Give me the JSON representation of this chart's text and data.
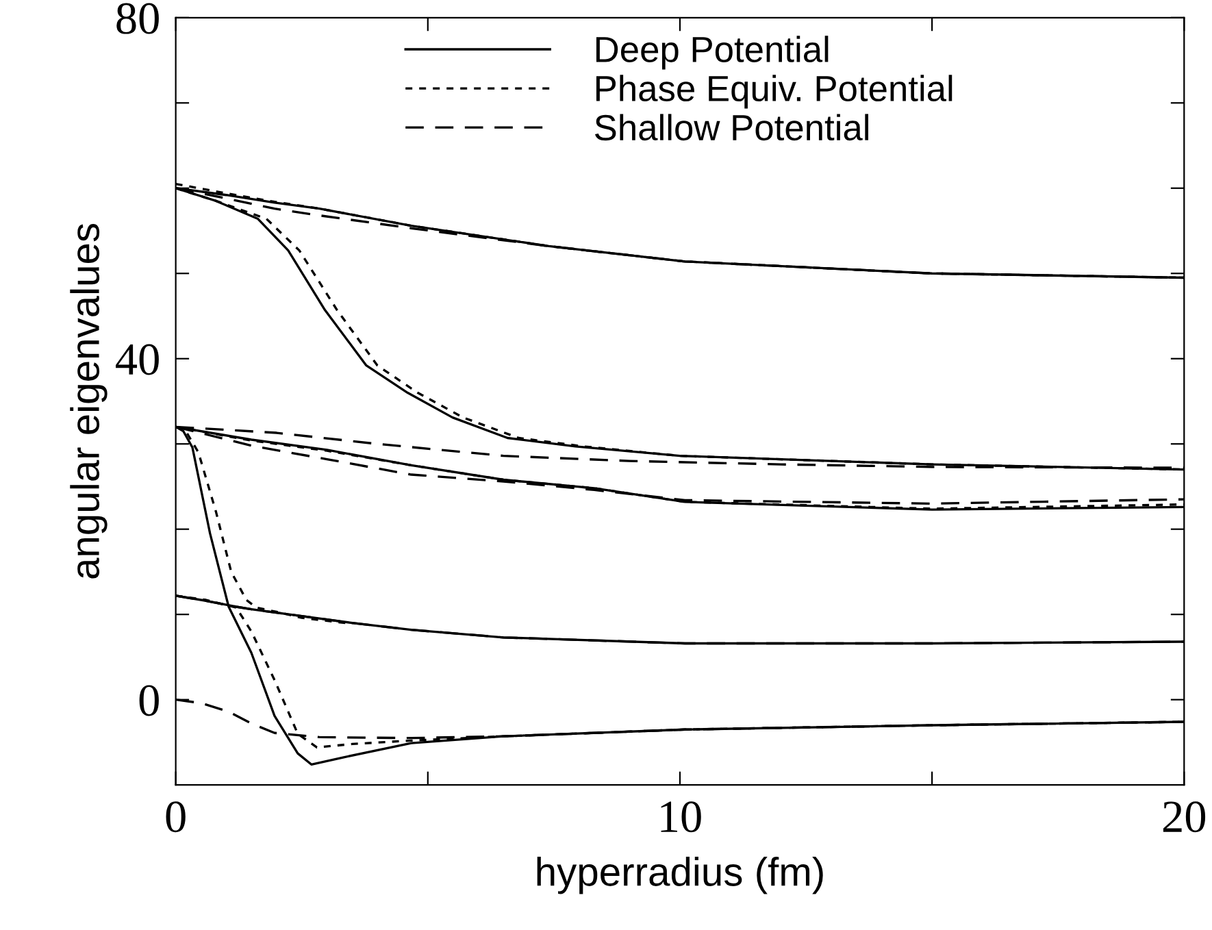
{
  "chart_data": {
    "type": "line",
    "xlabel": "hyperradius (fm)",
    "ylabel": "angular eigenvalues",
    "xlim": [
      0,
      20
    ],
    "ylim": [
      -10,
      80
    ],
    "xticks": [
      0,
      {
        "value": 5,
        "label": null
      },
      10,
      {
        "value": 15,
        "label": null
      },
      20
    ],
    "yticks": [
      0,
      {
        "value": 10,
        "label": null
      },
      {
        "value": 20,
        "label": null
      },
      {
        "value": 30,
        "label": null
      },
      40,
      {
        "value": 50,
        "label": null
      },
      {
        "value": 60,
        "label": null
      },
      {
        "value": 70,
        "label": null
      },
      80
    ],
    "grid": false,
    "legend": "top",
    "marker": "none",
    "series": [
      {
        "name": "Deep Potential",
        "color": "#000000",
        "line_style": "solid",
        "x": [
          0,
          1.0,
          1.96,
          2.85,
          4.67,
          7.4,
          10.1,
          15,
          20
        ],
        "values": [
          60,
          59.2,
          58.3,
          57.6,
          55.6,
          53.2,
          51.4,
          50.0,
          49.5
        ]
      },
      {
        "name": "Phase Equiv. Potential",
        "color": "#000000",
        "line_style": "dotted",
        "x": [
          0,
          1.0,
          1.96,
          2.85,
          4.67,
          7.4,
          10.1,
          15,
          20
        ],
        "values": [
          60.5,
          59.4,
          58.4,
          57.6,
          55.6,
          53.2,
          51.4,
          50.0,
          49.5
        ]
      },
      {
        "name": "Shallow Potential",
        "color": "#000000",
        "line_style": "dashed",
        "x": [
          0,
          1.0,
          1.96,
          2.85,
          4.67,
          7.4,
          10.1,
          15,
          20
        ],
        "values": [
          60,
          58.8,
          57.6,
          56.8,
          55.3,
          53.2,
          51.4,
          50.0,
          49.5
        ]
      },
      {
        "color": "#000000",
        "line_style": "solid",
        "x": [
          0,
          0.8,
          1.63,
          2.23,
          2.96,
          3.78,
          4.6,
          5.49,
          6.58,
          7.93,
          10,
          15,
          20
        ],
        "values": [
          60,
          58.5,
          56.4,
          52.7,
          45.7,
          39.2,
          36.0,
          33.1,
          30.7,
          29.7,
          28.6,
          27.6,
          27.0
        ]
      },
      {
        "color": "#000000",
        "line_style": "dotted",
        "x": [
          0,
          0.8,
          1.8,
          2.45,
          3.2,
          4.0,
          4.8,
          5.7,
          6.8,
          8.1,
          10,
          15,
          20
        ],
        "values": [
          60,
          58.5,
          56.4,
          52.7,
          45.7,
          39.2,
          36.0,
          33.1,
          30.7,
          29.7,
          28.6,
          27.6,
          27.0
        ]
      },
      {
        "color": "#000000",
        "line_style": "dashed",
        "x": [
          0,
          2,
          4,
          6.5,
          9,
          12,
          15,
          20
        ],
        "values": [
          32,
          31.3,
          30.0,
          28.6,
          28.0,
          27.6,
          27.3,
          27.2
        ]
      },
      {
        "color": "#000000",
        "line_style": "solid",
        "x": [
          0,
          1.5,
          3,
          4.67,
          6.5,
          8.3,
          10.1,
          15,
          20
        ],
        "values": [
          32,
          30.5,
          29.3,
          27.5,
          25.8,
          24.8,
          23.2,
          22.3,
          22.6
        ]
      },
      {
        "color": "#000000",
        "line_style": "dotted",
        "x": [
          0,
          1.5,
          3,
          4.67,
          6.5,
          8.3,
          10.1,
          15,
          20
        ],
        "values": [
          32,
          30.4,
          29.2,
          27.5,
          25.8,
          24.8,
          23.2,
          22.4,
          22.9
        ]
      },
      {
        "color": "#000000",
        "line_style": "dashed",
        "x": [
          0,
          1.5,
          3,
          4.67,
          6.5,
          8.3,
          10.1,
          15,
          20
        ],
        "values": [
          32,
          29.8,
          28.2,
          26.4,
          25.6,
          24.6,
          23.4,
          23.0,
          23.5
        ]
      },
      {
        "color": "#000000",
        "line_style": "solid",
        "x": [
          0,
          0.15,
          0.33,
          0.68,
          1.05,
          1.5,
          1.96,
          2.42,
          2.69,
          3.3,
          4.67,
          6.5,
          10.1,
          15,
          20
        ],
        "values": [
          32,
          31.5,
          29.6,
          19.5,
          10.9,
          5.5,
          -1.9,
          -6.3,
          -7.6,
          -6.8,
          -5.1,
          -4.3,
          -3.5,
          -3.0,
          -2.6
        ]
      },
      {
        "color": "#000000",
        "line_style": "dotted",
        "x": [
          0,
          0.2,
          0.45,
          0.8,
          1.1,
          1.4,
          1.6,
          2.0,
          2.5,
          3.5
        ],
        "values": [
          32,
          31.5,
          29.0,
          22.0,
          15.0,
          11.7,
          10.8,
          10.3,
          9.6,
          8.9
        ]
      },
      {
        "color": "#000000",
        "line_style": "dotted",
        "x": [
          0,
          0.6,
          1.2,
          1.5,
          1.96,
          2.42,
          2.8,
          3.5,
          4.67,
          6.5,
          10.1,
          15,
          20
        ],
        "values": [
          12.2,
          11.7,
          10.8,
          8.0,
          2.3,
          -4.0,
          -5.6,
          -5.2,
          -4.8,
          -4.3,
          -3.5,
          -3.0,
          -2.6
        ]
      },
      {
        "color": "#000000",
        "line_style": "solid",
        "x": [
          0,
          0.6,
          1.2,
          1.5,
          2.5,
          3.5,
          4.67,
          6.5,
          10.1,
          15,
          20
        ],
        "values": [
          12.2,
          11.6,
          10.9,
          10.6,
          9.8,
          9.0,
          8.2,
          7.3,
          6.6,
          6.6,
          6.8
        ]
      },
      {
        "color": "#000000",
        "line_style": "dashed",
        "x": [
          0,
          0.6,
          1.2,
          1.5,
          2.5,
          3.5,
          4.67,
          6.5,
          10.1,
          15,
          20
        ],
        "values": [
          12.2,
          11.6,
          10.9,
          10.6,
          9.8,
          9.0,
          8.2,
          7.3,
          6.6,
          6.6,
          6.8
        ]
      },
      {
        "color": "#000000",
        "line_style": "dashed",
        "x": [
          0,
          0.5,
          1.05,
          1.5,
          1.96,
          2.85,
          4.67,
          6.5,
          10.1,
          15,
          20
        ],
        "values": [
          0,
          -0.4,
          -1.4,
          -2.8,
          -3.9,
          -4.4,
          -4.5,
          -4.3,
          -3.5,
          -3.0,
          -2.6
        ]
      }
    ]
  }
}
